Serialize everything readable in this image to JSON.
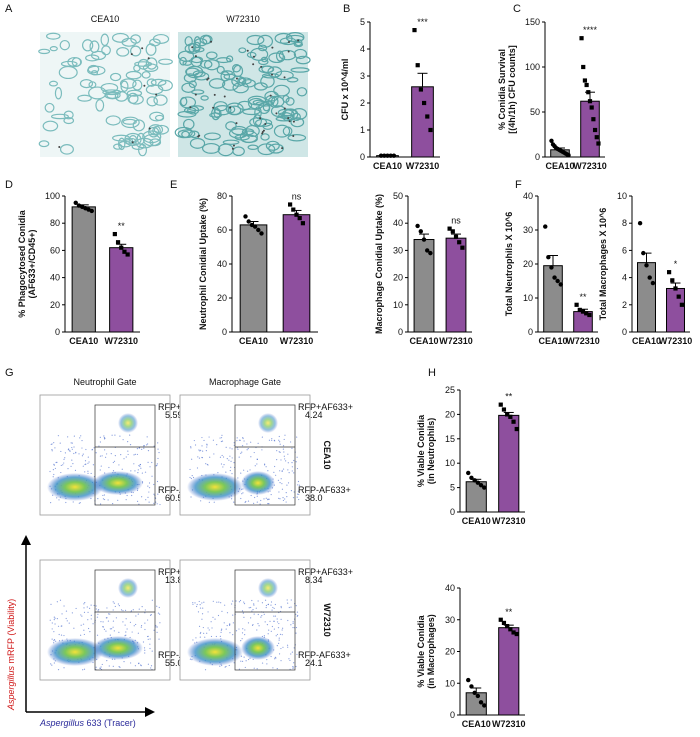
{
  "panel_labels": [
    "A",
    "B",
    "C",
    "D",
    "E",
    "F",
    "G",
    "H"
  ],
  "histology": {
    "labels": [
      "CEA10",
      "W72310"
    ]
  },
  "flow": {
    "columns": [
      "Neutrophil Gate",
      "Macrophage Gate"
    ],
    "rows": [
      "CEA10",
      "W72310"
    ],
    "y_label": [
      "Aspergillus",
      " mRFP (Viability)"
    ],
    "x_label": [
      "Aspergillus",
      " 633 (Tracer)"
    ],
    "plots": [
      {
        "upper_gate": "RFP+AF633+",
        "upper_value": "5.59",
        "lower_gate": "RFP-AF633+",
        "lower_value": "60.5"
      },
      {
        "upper_gate": "RFP+AF633+",
        "upper_value": "4.24",
        "lower_gate": "RFP-AF633+",
        "lower_value": "38.0"
      },
      {
        "upper_gate": "RFP+AF633+",
        "upper_value": "13.8",
        "lower_gate": "RFP-AF633+",
        "lower_value": "55.0"
      },
      {
        "upper_gate": "RFP+AF633+",
        "upper_value": "8.34",
        "lower_gate": "RFP-AF633+",
        "lower_value": "24.1"
      }
    ]
  },
  "chart_data": [
    {
      "type": "bar",
      "ylabel": [
        "CFU x 10^4/ml"
      ],
      "categories": [
        "CEA10",
        "W72310"
      ],
      "colors": [
        "#8c8c8c",
        "#8e4f9e"
      ],
      "values": [
        0.05,
        2.6
      ],
      "errors": [
        0.02,
        0.5
      ],
      "points": [
        [
          0.05,
          0.05,
          0.05,
          0.05,
          0.05
        ],
        [
          4.7,
          3.4,
          2.5,
          2.0,
          1.5,
          1.0
        ]
      ],
      "annotation": "***",
      "ylim": [
        0,
        5
      ],
      "yticks": [
        0,
        1,
        2,
        3,
        4,
        5
      ]
    },
    {
      "type": "bar",
      "ylabel": [
        "% Conidia Survival",
        "[(4h/1h) CFU counts]"
      ],
      "categories": [
        "CEA10",
        "W72310"
      ],
      "colors": [
        "#8c8c8c",
        "#8e4f9e"
      ],
      "values": [
        8,
        62
      ],
      "errors": [
        2,
        10
      ],
      "points": [
        [
          18,
          14,
          12,
          10,
          9,
          8,
          7,
          6,
          5,
          4,
          3,
          2
        ],
        [
          132,
          100,
          85,
          80,
          72,
          62,
          55,
          42,
          30,
          22,
          15
        ]
      ],
      "annotation": "****",
      "ylim": [
        0,
        150
      ],
      "yticks": [
        0,
        50,
        100,
        150
      ]
    },
    {
      "type": "bar",
      "ylabel": [
        "% Phagocytosed Conidia",
        "(AF633+/CD45+)"
      ],
      "categories": [
        "CEA10",
        "W72310"
      ],
      "colors": [
        "#8c8c8c",
        "#8e4f9e"
      ],
      "values": [
        92,
        62
      ],
      "errors": [
        1.5,
        2.5
      ],
      "points": [
        [
          95,
          93,
          92,
          91,
          90,
          89
        ],
        [
          72,
          66,
          62,
          59,
          57
        ]
      ],
      "annotation": "**",
      "ylim": [
        0,
        100
      ],
      "yticks": [
        0,
        20,
        40,
        60,
        80,
        100
      ]
    },
    {
      "type": "bar",
      "ylabel": [
        "Neutrophil Conidial Uptake (%)"
      ],
      "categories": [
        "CEA10",
        "W72310"
      ],
      "colors": [
        "#8c8c8c",
        "#8e4f9e"
      ],
      "values": [
        63,
        69
      ],
      "errors": [
        2,
        2.5
      ],
      "points": [
        [
          68,
          65,
          63,
          62,
          60,
          58
        ],
        [
          75,
          72,
          69,
          67,
          64
        ]
      ],
      "annotation": "ns",
      "ylim": [
        0,
        80
      ],
      "yticks": [
        0,
        20,
        40,
        60,
        80
      ]
    },
    {
      "type": "bar",
      "ylabel": [
        "Macrophage Conidial Uptake (%)"
      ],
      "categories": [
        "CEA10",
        "W72310"
      ],
      "colors": [
        "#8c8c8c",
        "#8e4f9e"
      ],
      "values": [
        34,
        34.5
      ],
      "errors": [
        2,
        1.5
      ],
      "points": [
        [
          39,
          37,
          34,
          30,
          29
        ],
        [
          38,
          37,
          35,
          33,
          31
        ]
      ],
      "annotation": "ns",
      "ylim": [
        0,
        50
      ],
      "yticks": [
        0,
        10,
        20,
        30,
        40,
        50
      ]
    },
    {
      "type": "bar",
      "ylabel": [
        "Total Neutrophils X 10^6"
      ],
      "categories": [
        "CEA10",
        "W72310"
      ],
      "colors": [
        "#8c8c8c",
        "#8e4f9e"
      ],
      "values": [
        19.5,
        6
      ],
      "errors": [
        3,
        0.7
      ],
      "points": [
        [
          31,
          22,
          19,
          16,
          15,
          14
        ],
        [
          8,
          6.5,
          6,
          5.5,
          5
        ]
      ],
      "annotation": "**",
      "ylim": [
        0,
        40
      ],
      "yticks": [
        0,
        10,
        20,
        30,
        40
      ]
    },
    {
      "type": "bar",
      "ylabel": [
        "Total Macrophages X 10^6"
      ],
      "categories": [
        "CEA10",
        "W72310"
      ],
      "colors": [
        "#8c8c8c",
        "#8e4f9e"
      ],
      "values": [
        5.1,
        3.2
      ],
      "errors": [
        0.7,
        0.4
      ],
      "points": [
        [
          8,
          5.8,
          4.9,
          4,
          3.6
        ],
        [
          4.4,
          3.8,
          3.2,
          2.6,
          2
        ]
      ],
      "annotation": "*",
      "ylim": [
        0,
        10
      ],
      "yticks": [
        0,
        2,
        4,
        6,
        8,
        10
      ]
    },
    {
      "type": "bar",
      "ylabel": [
        "% Viable Conidia",
        "(in Neutrophils)"
      ],
      "categories": [
        "CEA10",
        "W72310"
      ],
      "colors": [
        "#8c8c8c",
        "#8e4f9e"
      ],
      "values": [
        6.2,
        19.8
      ],
      "errors": [
        0.5,
        0.6
      ],
      "points": [
        [
          8,
          7,
          6.5,
          6,
          5.5,
          5
        ],
        [
          22,
          21,
          20,
          19.5,
          18.5,
          17
        ]
      ],
      "annotation": "**",
      "ylim": [
        0,
        25
      ],
      "yticks": [
        0,
        5,
        10,
        15,
        20,
        25
      ]
    },
    {
      "type": "bar",
      "ylabel": [
        "% Viable Conidia",
        "(in Macrophages)"
      ],
      "categories": [
        "CEA10",
        "W72310"
      ],
      "colors": [
        "#8c8c8c",
        "#8e4f9e"
      ],
      "values": [
        7,
        27.5
      ],
      "errors": [
        1.5,
        0.8
      ],
      "points": [
        [
          11,
          9,
          7,
          6,
          4,
          3
        ],
        [
          30,
          29,
          28,
          27,
          26,
          25.5
        ]
      ],
      "annotation": "**",
      "ylim": [
        0,
        40
      ],
      "yticks": [
        0,
        10,
        20,
        30,
        40
      ]
    }
  ]
}
